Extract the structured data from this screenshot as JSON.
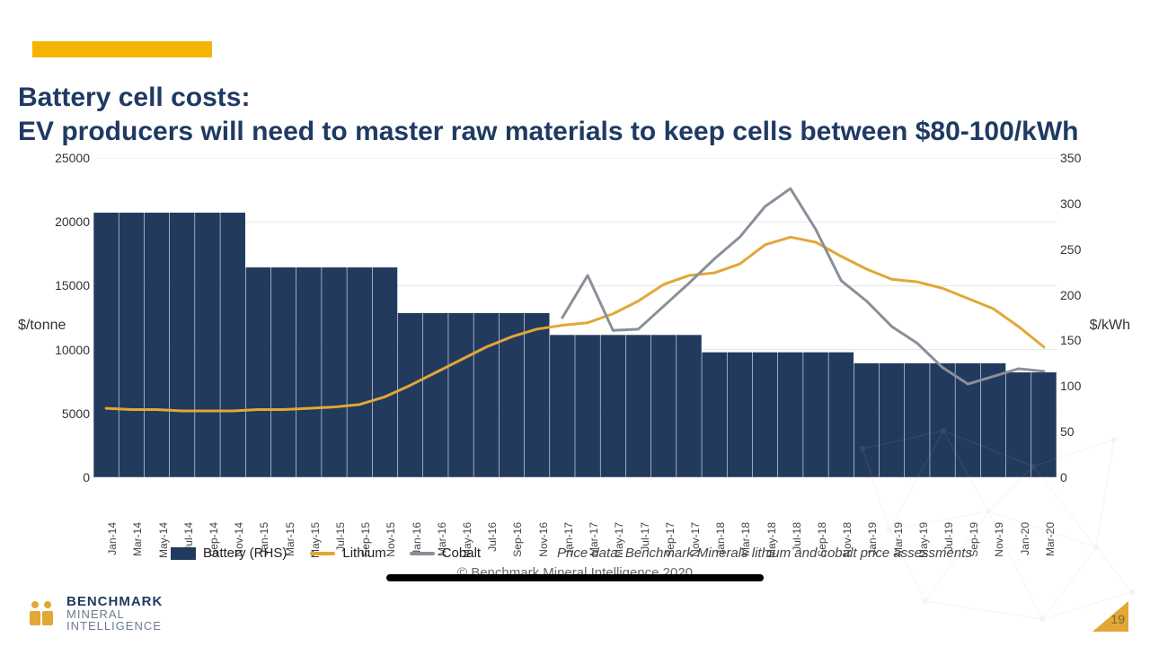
{
  "accent_bar_color": "#f4b400",
  "title_color": "#1f3a63",
  "title_line1": "Battery cell costs:",
  "title_line2": "EV producers will need to master raw materials to keep cells between $80-100/kWh",
  "chart": {
    "type": "combo-bar-line-dual-axis",
    "background_color": "#ffffff",
    "grid_color": "#e5e5e5",
    "left_axis": {
      "label": "$/tonne",
      "min": 0,
      "max": 25000,
      "tick_step": 5000,
      "ticks": [
        0,
        5000,
        10000,
        15000,
        20000,
        25000
      ],
      "tick_fontsize": 14,
      "label_fontsize": 16
    },
    "right_axis": {
      "label": "$/kWh",
      "min": 0,
      "max": 350,
      "tick_step": 50,
      "ticks": [
        0,
        50,
        100,
        150,
        200,
        250,
        300,
        350
      ],
      "tick_fontsize": 14,
      "label_fontsize": 16
    },
    "x_labels": [
      "Jan-14",
      "Mar-14",
      "May-14",
      "Jul-14",
      "Sep-14",
      "Nov-14",
      "Jan-15",
      "Mar-15",
      "May-15",
      "Jul-15",
      "Sep-15",
      "Nov-15",
      "Jan-16",
      "Mar-16",
      "May-16",
      "Jul-16",
      "Sep-16",
      "Nov-16",
      "Jan-17",
      "Mar-17",
      "May-17",
      "Jul-17",
      "Sep-17",
      "Nov-17",
      "Jan-18",
      "Mar-18",
      "May-18",
      "Jul-18",
      "Sep-18",
      "Nov-18",
      "Jan-19",
      "Mar-19",
      "May-19",
      "Jul-19",
      "Sep-19",
      "Nov-19",
      "Jan-20",
      "Mar-20"
    ],
    "series": {
      "battery_rhs": {
        "type": "bar",
        "axis": "right",
        "color": "#223a5e",
        "bar_gap_ratio": 0.02,
        "values": [
          290,
          290,
          290,
          290,
          290,
          290,
          230,
          230,
          230,
          230,
          230,
          230,
          180,
          180,
          180,
          180,
          180,
          180,
          156,
          156,
          156,
          156,
          156,
          156,
          137,
          137,
          137,
          137,
          137,
          137,
          125,
          125,
          125,
          125,
          125,
          125,
          115,
          115
        ]
      },
      "lithium": {
        "type": "line",
        "axis": "left",
        "color": "#e1a836",
        "line_width": 3,
        "values": [
          5400,
          5300,
          5300,
          5200,
          5200,
          5200,
          5300,
          5300,
          5400,
          5500,
          5700,
          6300,
          7200,
          8200,
          9200,
          10200,
          11000,
          11600,
          11900,
          12100,
          12800,
          13800,
          15100,
          15800,
          16000,
          16700,
          18200,
          18800,
          18400,
          17300,
          16300,
          15500,
          15300,
          14800,
          14000,
          13200,
          11800,
          10200
        ]
      },
      "cobalt": {
        "type": "line",
        "axis": "left",
        "color": "#8a8f99",
        "line_width": 3,
        "start_index": 18,
        "values": [
          12500,
          15800,
          11500,
          11600,
          13400,
          15200,
          17100,
          18800,
          21200,
          22600,
          19400,
          15400,
          13800,
          11800,
          10500,
          8600,
          7300,
          7900,
          8500,
          8300
        ]
      }
    },
    "legend": [
      {
        "label": "Battery (RHS)",
        "swatch": "square",
        "color": "#223a5e"
      },
      {
        "label": "Lithium",
        "swatch": "line",
        "color": "#e1a836"
      },
      {
        "label": "Cobalt",
        "swatch": "line",
        "color": "#8a8f99"
      }
    ]
  },
  "source_note": "Price data: Benchmark Minerals lithium and cobalt price assessments",
  "copyright": "© Benchmark Mineral Intelligence 2020",
  "brand": {
    "logo_color": "#e1a836",
    "line1": "BENCHMARK",
    "line2": "MINERAL",
    "line3": "INTELLIGENCE"
  },
  "page_number": "19",
  "page_triangle_color": "#e1a836",
  "network_decor_color": "#aab3c2"
}
